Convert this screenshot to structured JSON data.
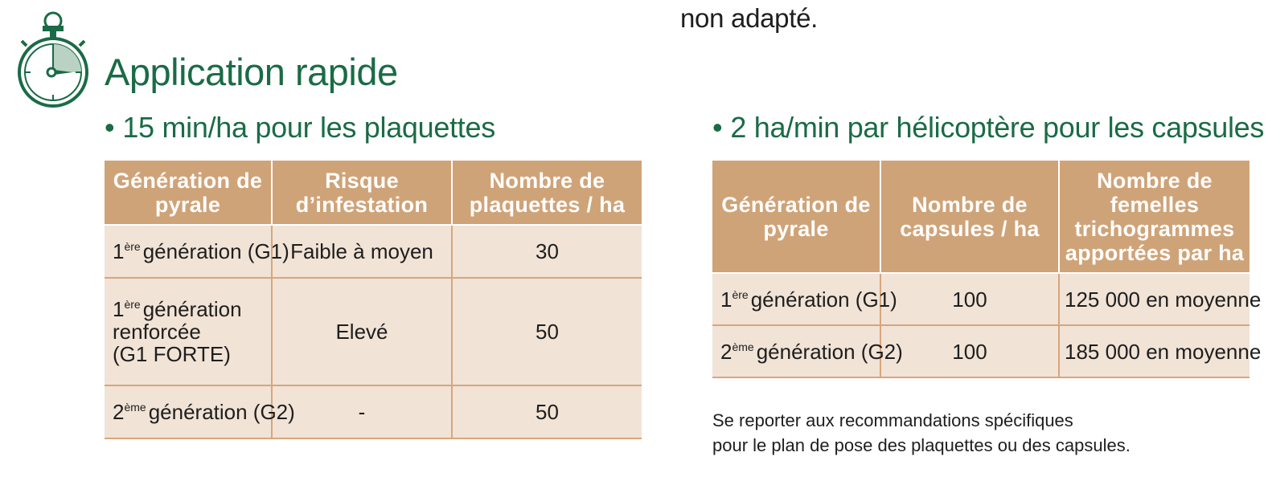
{
  "top_note": "non adapté.",
  "title": "Application rapide",
  "left": {
    "bullet": "15 min/ha pour les plaquettes",
    "headers": [
      "Génération de pyrale",
      "Risque d’infestation",
      "Nombre de plaquettes / ha"
    ],
    "rows": [
      {
        "sup": "ère",
        "gen_prefix": "1",
        "gen": "génération (G1)",
        "risk": "Faible à moyen",
        "count": "30"
      },
      {
        "sup": "ère",
        "gen_prefix": "1",
        "gen_line1": "génération",
        "gen_line2": "renforcée",
        "gen_line3": "(G1 FORTE)",
        "risk": "Elevé",
        "count": "50"
      },
      {
        "sup": "ème",
        "gen_prefix": "2",
        "gen": "génération (G2)",
        "risk": "-",
        "count": "50"
      }
    ]
  },
  "right": {
    "bullet": "2 ha/min par hélicoptère pour les capsules",
    "headers": [
      "Génération de pyrale",
      "Nombre de capsules / ha",
      "Nombre de femelles trichogrammes apportées par ha"
    ],
    "rows": [
      {
        "sup": "ère",
        "gen_prefix": "1",
        "gen": "génération (G1)",
        "capsules": "100",
        "females": "125 000 en moyenne"
      },
      {
        "sup": "ème",
        "gen_prefix": "2",
        "gen": "génération (G2)",
        "capsules": "100",
        "females": "185 000 en moyenne"
      }
    ],
    "footnote_line1": "Se reporter aux recommandations spécifiques",
    "footnote_line2": "pour le plan de pose des plaquettes ou des capsules."
  },
  "colors": {
    "brand_green": "#1a6b46",
    "header_tan": "#cfa378",
    "cell_bg": "#f1e3d6",
    "rule": "#d8a67c"
  },
  "icon": "stopwatch-icon"
}
